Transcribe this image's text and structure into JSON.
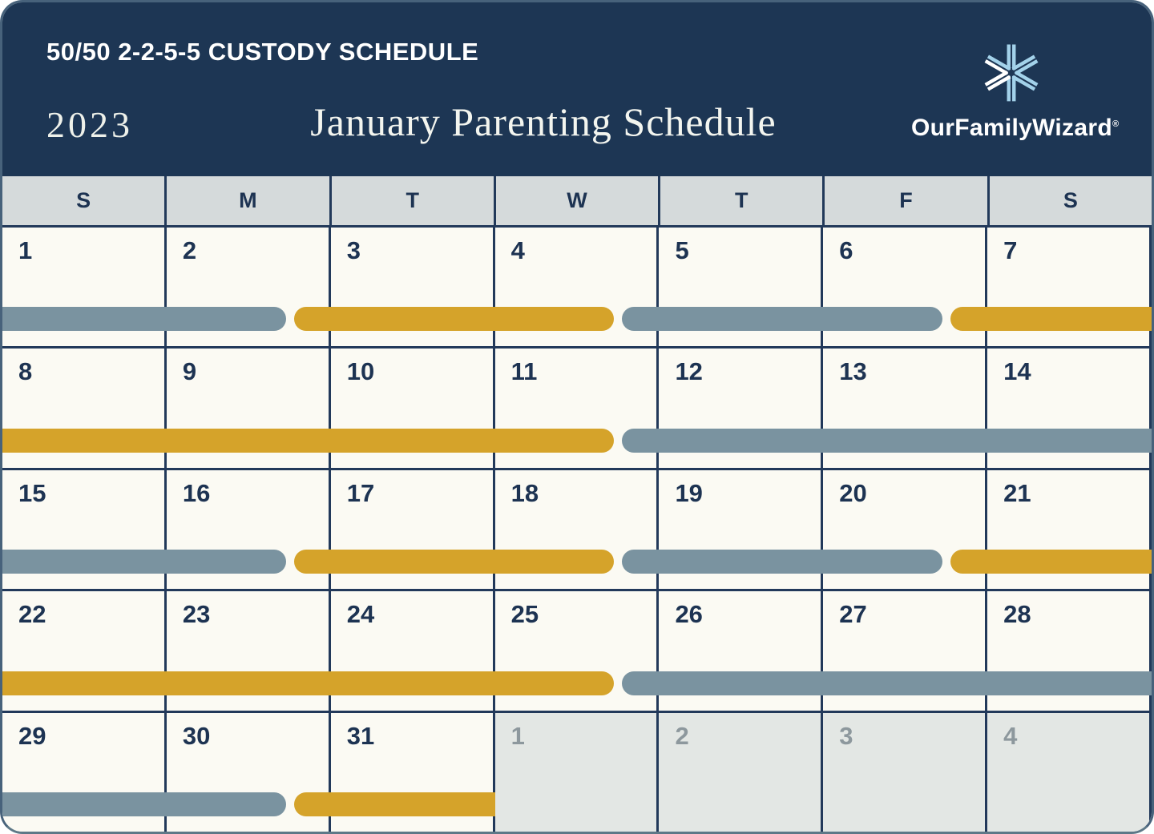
{
  "header": {
    "kicker": "50/50 2-2-5-5 CUSTODY SCHEDULE",
    "year": "2023",
    "title": "January Parenting Schedule",
    "brand": "OurFamilyWizard",
    "registered_mark": "®"
  },
  "colors": {
    "navy": "#1d3654",
    "grid_line": "#22395a",
    "cell_cream": "#fbfaf3",
    "dow_gray": "#d5dadb",
    "muted_cell_gray": "#e3e7e4",
    "slate": "#7a93a0",
    "gold": "#d5a32a",
    "day_number_navy": "#1d3352",
    "muted_day_number": "#8d989d",
    "logo_light_blue": "#a3d2ea",
    "card_border": "#47627b"
  },
  "calendar": {
    "day_headers": [
      "S",
      "M",
      "T",
      "W",
      "T",
      "F",
      "S"
    ],
    "weeks": [
      {
        "days": [
          {
            "n": "1"
          },
          {
            "n": "2"
          },
          {
            "n": "3"
          },
          {
            "n": "4"
          },
          {
            "n": "5"
          },
          {
            "n": "6"
          },
          {
            "n": "7"
          }
        ],
        "bars": [
          {
            "color": "slate",
            "from": 0,
            "to": 1.75,
            "cap_left": false,
            "cap_right": true
          },
          {
            "color": "gold",
            "from": 1.75,
            "to": 3.75,
            "cap_left": true,
            "cap_right": true
          },
          {
            "color": "slate",
            "from": 3.75,
            "to": 5.75,
            "cap_left": true,
            "cap_right": true
          },
          {
            "color": "gold",
            "from": 5.75,
            "to": 7,
            "cap_left": true,
            "cap_right": false
          }
        ]
      },
      {
        "days": [
          {
            "n": "8"
          },
          {
            "n": "9"
          },
          {
            "n": "10"
          },
          {
            "n": "11"
          },
          {
            "n": "12"
          },
          {
            "n": "13"
          },
          {
            "n": "14"
          }
        ],
        "bars": [
          {
            "color": "gold",
            "from": 0,
            "to": 3.75,
            "cap_left": false,
            "cap_right": true
          },
          {
            "color": "slate",
            "from": 3.75,
            "to": 7,
            "cap_left": true,
            "cap_right": false
          }
        ]
      },
      {
        "days": [
          {
            "n": "15"
          },
          {
            "n": "16"
          },
          {
            "n": "17"
          },
          {
            "n": "18"
          },
          {
            "n": "19"
          },
          {
            "n": "20"
          },
          {
            "n": "21"
          }
        ],
        "bars": [
          {
            "color": "slate",
            "from": 0,
            "to": 1.75,
            "cap_left": false,
            "cap_right": true
          },
          {
            "color": "gold",
            "from": 1.75,
            "to": 3.75,
            "cap_left": true,
            "cap_right": true
          },
          {
            "color": "slate",
            "from": 3.75,
            "to": 5.75,
            "cap_left": true,
            "cap_right": true
          },
          {
            "color": "gold",
            "from": 5.75,
            "to": 7,
            "cap_left": true,
            "cap_right": false
          }
        ]
      },
      {
        "days": [
          {
            "n": "22"
          },
          {
            "n": "23"
          },
          {
            "n": "24"
          },
          {
            "n": "25"
          },
          {
            "n": "26"
          },
          {
            "n": "27"
          },
          {
            "n": "28"
          }
        ],
        "bars": [
          {
            "color": "gold",
            "from": 0,
            "to": 3.75,
            "cap_left": false,
            "cap_right": true
          },
          {
            "color": "slate",
            "from": 3.75,
            "to": 7,
            "cap_left": true,
            "cap_right": false
          }
        ]
      },
      {
        "days": [
          {
            "n": "29"
          },
          {
            "n": "30"
          },
          {
            "n": "31"
          },
          {
            "n": "1",
            "muted": true
          },
          {
            "n": "2",
            "muted": true
          },
          {
            "n": "3",
            "muted": true
          },
          {
            "n": "4",
            "muted": true
          }
        ],
        "bars": [
          {
            "color": "slate",
            "from": 0,
            "to": 1.75,
            "cap_left": false,
            "cap_right": true
          },
          {
            "color": "gold",
            "from": 1.75,
            "to": 3,
            "cap_left": true,
            "cap_right": false
          }
        ]
      }
    ]
  }
}
